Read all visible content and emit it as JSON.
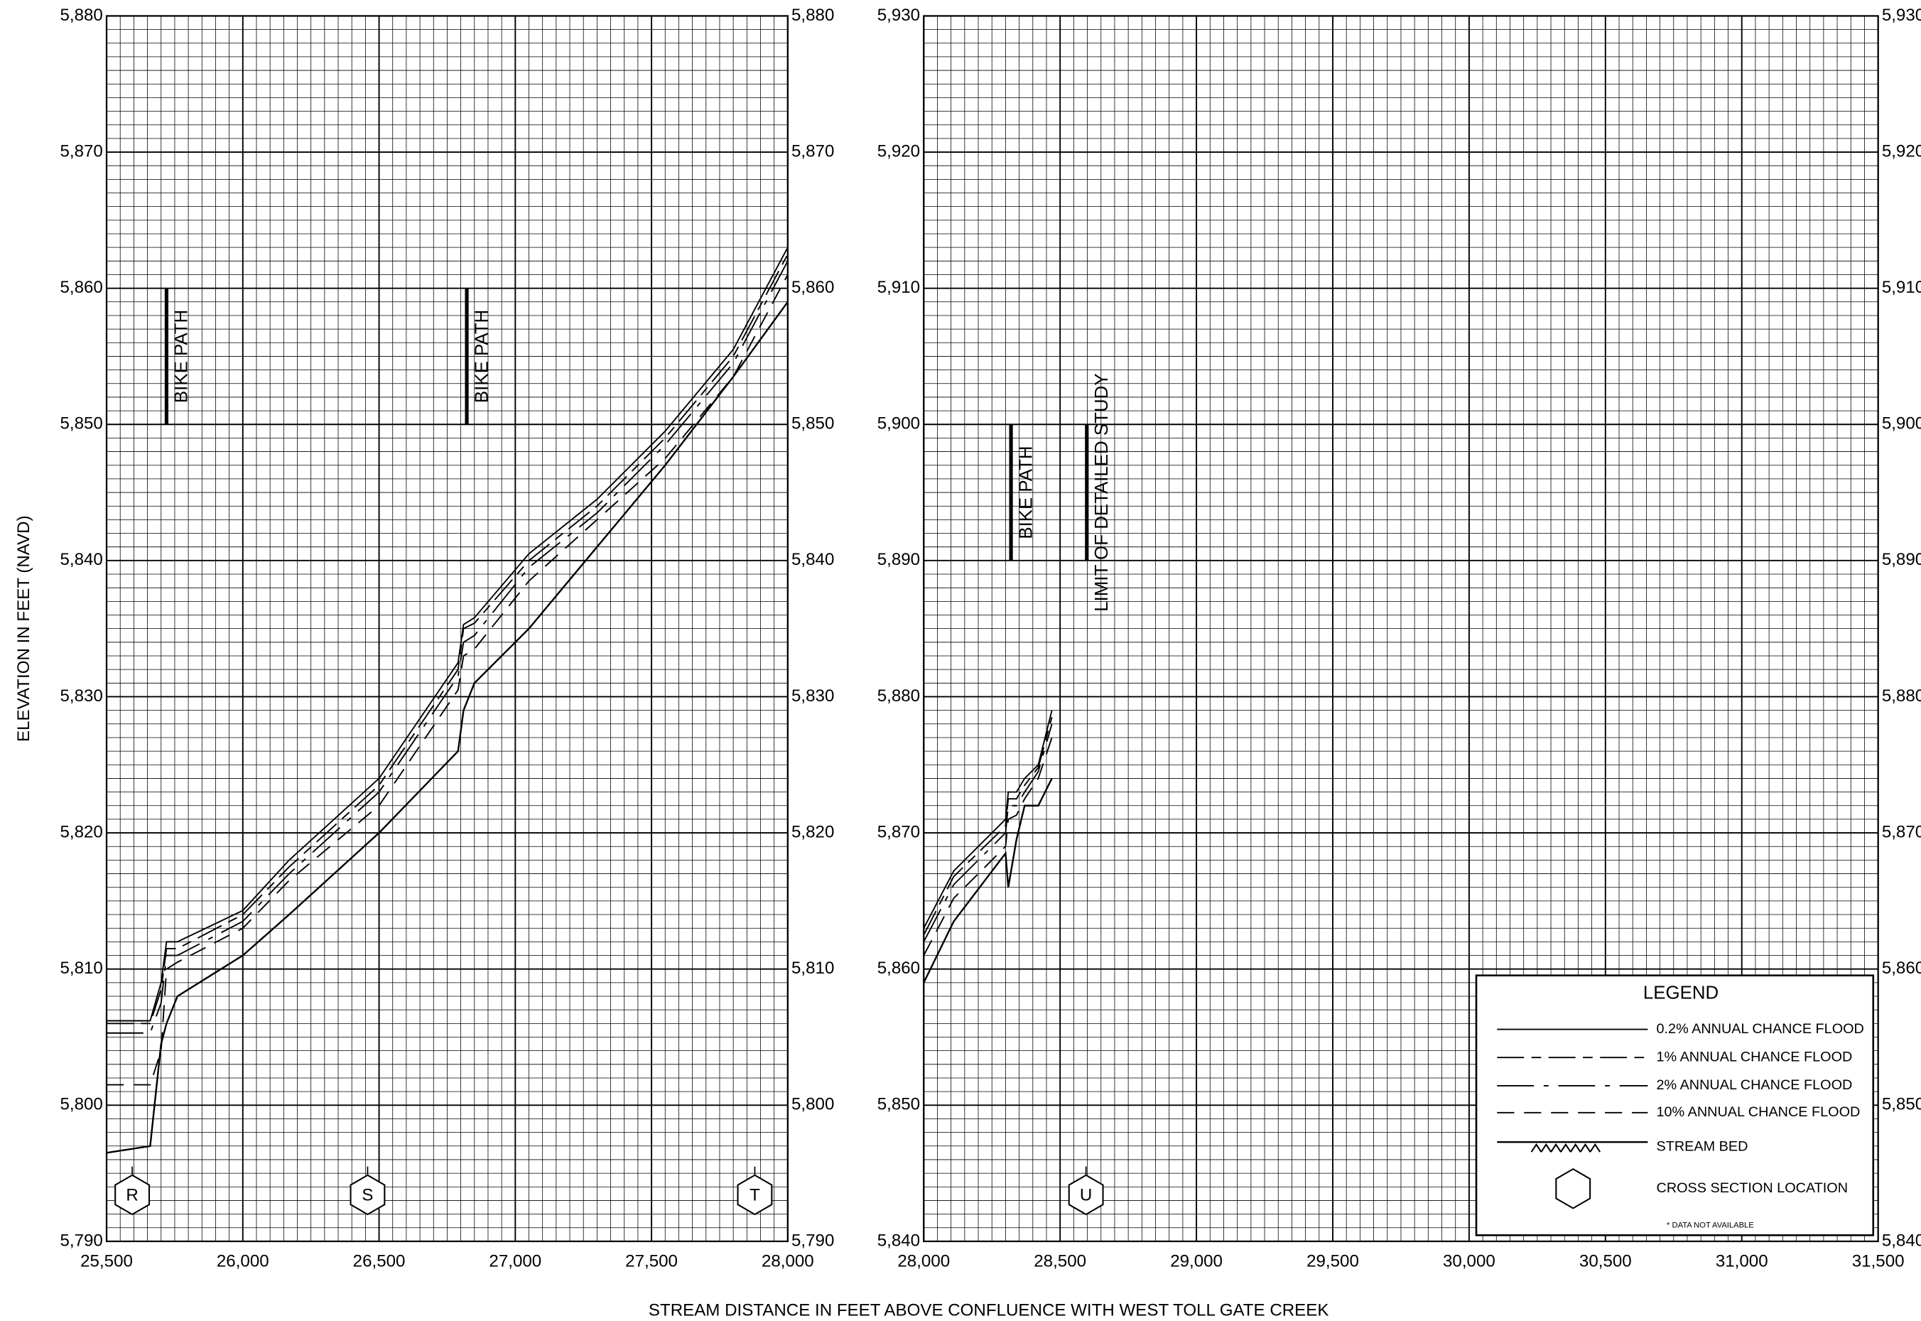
{
  "chart_data": [
    {
      "type": "line",
      "xlabel": "STREAM DISTANCE IN FEET ABOVE CONFLUENCE WITH WEST TOLL GATE CREEK",
      "ylabel": "ELEVATION IN FEET (NAVD)",
      "xlim": [
        25500,
        28000
      ],
      "xticks": [
        {
          "value": 25500,
          "label": "25,500"
        },
        {
          "value": 26000,
          "label": "26,000"
        },
        {
          "value": 26500,
          "label": "26,500"
        },
        {
          "value": 27000,
          "label": "27,000"
        },
        {
          "value": 27500,
          "label": "27,500"
        },
        {
          "value": 28000,
          "label": "28,000"
        }
      ],
      "ylim": [
        5790,
        5880
      ],
      "yticks": [
        {
          "value": 5790,
          "label": "5,790"
        },
        {
          "value": 5800,
          "label": "5,800"
        },
        {
          "value": 5810,
          "label": "5,810"
        },
        {
          "value": 5820,
          "label": "5,820"
        },
        {
          "value": 5830,
          "label": "5,830"
        },
        {
          "value": 5840,
          "label": "5,840"
        },
        {
          "value": 5850,
          "label": "5,850"
        },
        {
          "value": 5860,
          "label": "5,860"
        },
        {
          "value": 5870,
          "label": "5,870"
        },
        {
          "value": 5880,
          "label": "5,880"
        }
      ],
      "grid": true,
      "x": [
        25500,
        25660,
        25700,
        25720,
        25760,
        26000,
        26170,
        26500,
        26790,
        26810,
        26850,
        27050,
        27300,
        27550,
        27800,
        28000
      ],
      "series": [
        {
          "name": "0.2% ANNUAL CHANCE FLOOD",
          "color": "#000000",
          "dash": "solid",
          "values": [
            5806.2,
            5806.2,
            5809,
            5812,
            5812,
            5814.3,
            5818,
            5824,
            5832.5,
            5835.3,
            5835.8,
            5840.5,
            5844.5,
            5849.5,
            5855.5,
            5863
          ]
        },
        {
          "name": "1% ANNUAL CHANCE FLOOD",
          "color": "#000000",
          "dash": "long-dash-short-dash",
          "values": [
            5806,
            5806,
            5808.5,
            5811.5,
            5811.5,
            5814,
            5817.5,
            5823.5,
            5832,
            5835,
            5835.4,
            5840,
            5844,
            5849,
            5855,
            5862.5
          ]
        },
        {
          "name": "2% ANNUAL CHANCE FLOOD",
          "color": "#000000",
          "dash": "dash-dot",
          "values": [
            5805.3,
            5805.3,
            5807.5,
            5811,
            5811,
            5813.5,
            5817,
            5823,
            5831.5,
            5834,
            5834.5,
            5839.5,
            5843.5,
            5848.5,
            5854.5,
            5862
          ]
        },
        {
          "name": "10% ANNUAL CHANCE FLOOD",
          "color": "#000000",
          "dash": "dash",
          "values": [
            5801.5,
            5801.5,
            5804,
            5810,
            5810.5,
            5813,
            5816.5,
            5822,
            5830.5,
            5833,
            5833.5,
            5838.5,
            5843,
            5847.5,
            5853.5,
            5861
          ]
        },
        {
          "name": "STREAM BED",
          "color": "#000000",
          "dash": "bed",
          "values": [
            5796.5,
            5797,
            5804.5,
            5806,
            5808,
            5811,
            5814,
            5820,
            5826,
            5829,
            5831,
            5835,
            5841,
            5847,
            5853.5,
            5859
          ]
        }
      ],
      "annotations": [
        {
          "text": "BIKE PATH",
          "x": 25720,
          "y": [
            5850,
            5860
          ]
        },
        {
          "text": "BIKE PATH",
          "x": 26822,
          "y": [
            5850,
            5860
          ]
        }
      ],
      "cross_sections": [
        {
          "label": "R",
          "x": 25594
        },
        {
          "label": "S",
          "x": 26458
        },
        {
          "label": "T",
          "x": 27879
        }
      ]
    },
    {
      "type": "line",
      "xlim": [
        28000,
        31500
      ],
      "xticks": [
        {
          "value": 28000,
          "label": "28,000"
        },
        {
          "value": 28500,
          "label": "28,500"
        },
        {
          "value": 29000,
          "label": "29,000"
        },
        {
          "value": 29500,
          "label": "29,500"
        },
        {
          "value": 30000,
          "label": "30,000"
        },
        {
          "value": 30500,
          "label": "30,500"
        },
        {
          "value": 31000,
          "label": "31,000"
        },
        {
          "value": 31500,
          "label": "31,500"
        }
      ],
      "ylim": [
        5840,
        5930
      ],
      "yticks": [
        {
          "value": 5840,
          "label": "5,840"
        },
        {
          "value": 5850,
          "label": "5,850"
        },
        {
          "value": 5860,
          "label": "5,860"
        },
        {
          "value": 5870,
          "label": "5,870"
        },
        {
          "value": 5880,
          "label": "5,880"
        },
        {
          "value": 5890,
          "label": "5,890"
        },
        {
          "value": 5900,
          "label": "5,900"
        },
        {
          "value": 5910,
          "label": "5,910"
        },
        {
          "value": 5920,
          "label": "5,920"
        },
        {
          "value": 5930,
          "label": "5,930"
        }
      ],
      "grid": true,
      "x": [
        28000,
        28110,
        28300,
        28310,
        28340,
        28370,
        28420,
        28470
      ],
      "series": [
        {
          "color": "#000000",
          "dash": "solid",
          "values": [
            5863,
            5867.2,
            5871,
            5873,
            5873,
            5874,
            5875,
            5879
          ]
        },
        {
          "color": "#000000",
          "dash": "long-dash-short-dash",
          "values": [
            5862.5,
            5866.8,
            5870.5,
            5872.5,
            5872.5,
            5873.5,
            5874.8,
            5878.5
          ]
        },
        {
          "color": "#000000",
          "dash": "dash-dot",
          "values": [
            5862,
            5866.2,
            5870,
            5872,
            5872,
            5873,
            5874.5,
            5878
          ]
        },
        {
          "color": "#000000",
          "dash": "dash",
          "values": [
            5861,
            5865.2,
            5869,
            5871,
            5871.3,
            5872.5,
            5874,
            5877
          ]
        },
        {
          "color": "#000000",
          "dash": "bed",
          "values": [
            5859,
            5863.5,
            5868.5,
            5866,
            5869.5,
            5872,
            5872,
            5874
          ]
        }
      ],
      "annotations": [
        {
          "text": "BIKE PATH",
          "x": 28320,
          "y": [
            5890,
            5900
          ]
        },
        {
          "text": "LIMIT OF DETAILED STUDY",
          "x": 28598,
          "y": [
            5890,
            5900
          ]
        }
      ],
      "cross_sections": [
        {
          "label": "U",
          "x": 28595
        }
      ],
      "legend": {
        "title": "LEGEND",
        "cross_section": "CROSS SECTION LOCATION",
        "note": "* DATA NOT AVAILABLE"
      }
    }
  ]
}
